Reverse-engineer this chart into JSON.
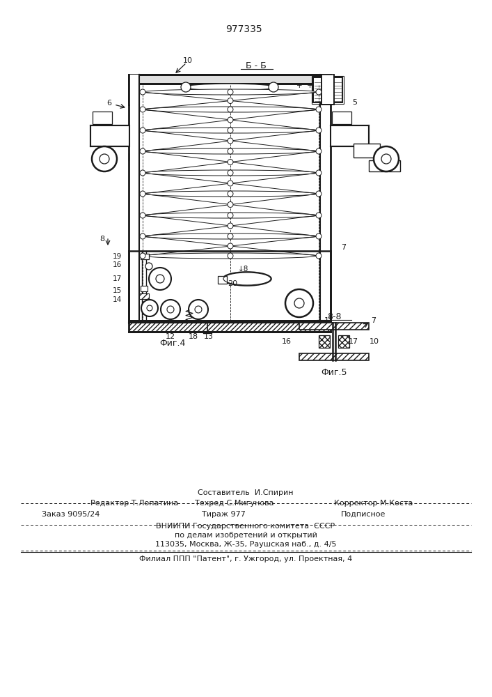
{
  "patent_number": "977335",
  "fig4_label": "Фиг.4",
  "fig5_label": "Фиг.5",
  "section_bb": "Б - Б",
  "section_88": "8-8",
  "line_color": "#1a1a1a",
  "footer_line1": "Составитель  И.Спирин",
  "footer_line2_left": "Редактор Т.Лопатина",
  "footer_line2_mid": "Техред С.Мигунова",
  "footer_line2_right": "Корректор М.Коста",
  "footer_line3_left": "Заказ 9095/24",
  "footer_line3_mid": "Тираж 977",
  "footer_line3_right": "Подписное",
  "footer_line4": "ВНИИПИ Государственного комитета  СССР",
  "footer_line5": "по делам изобретений и открытий",
  "footer_line6": "113035, Москва, Ж-35, Раушская наб., д. 4/5",
  "footer_line7": "Филиал ППП \"Патент\", г. Ужгород, ул. Проектная, 4"
}
